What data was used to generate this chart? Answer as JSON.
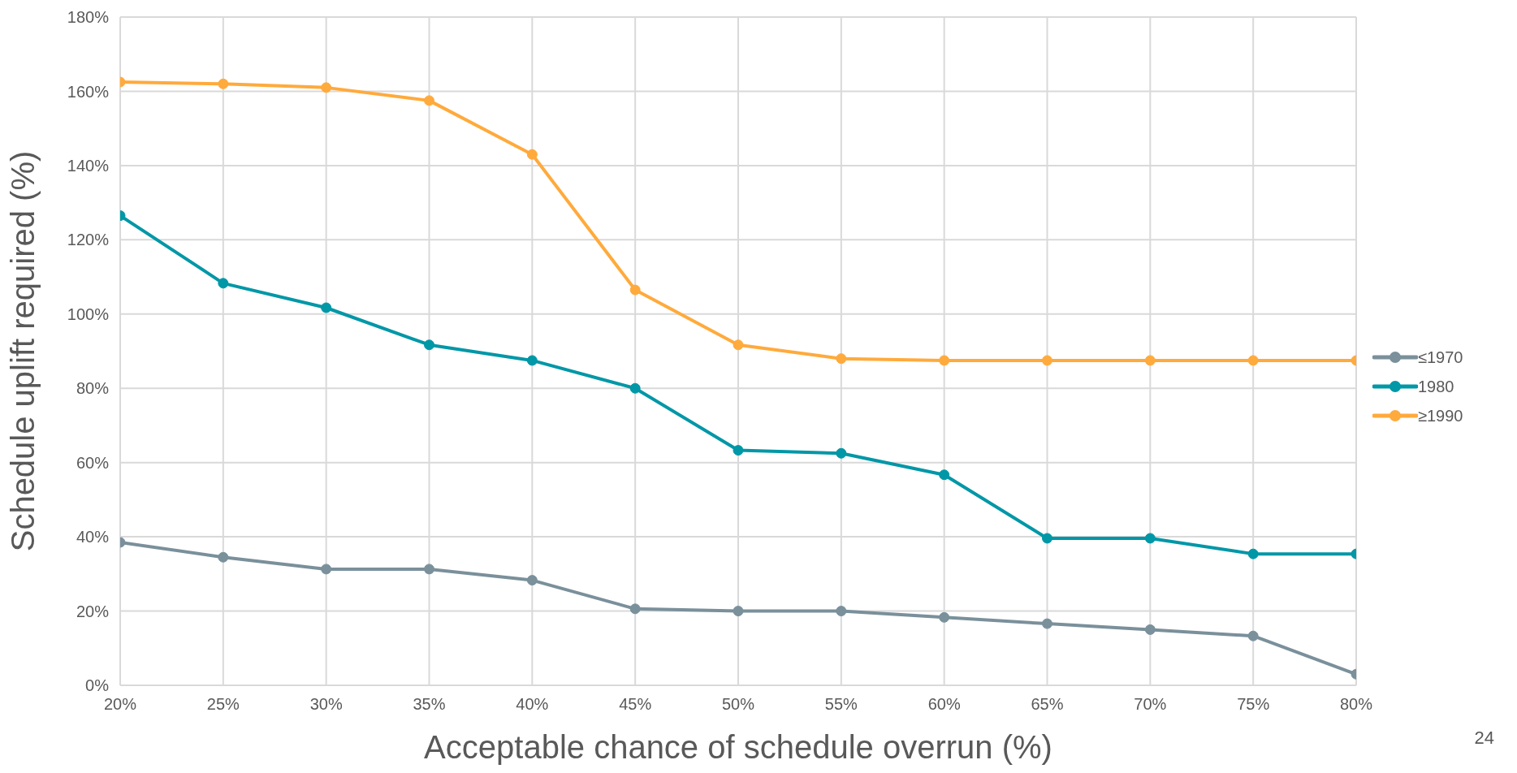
{
  "chart_data": {
    "type": "line",
    "xlabel": "Acceptable chance of schedule overrun (%)",
    "ylabel": "Schedule uplift required (%)",
    "x": [
      20,
      25,
      30,
      35,
      40,
      45,
      50,
      55,
      60,
      65,
      70,
      75,
      80
    ],
    "series": [
      {
        "name": "≤1970",
        "color": "#7a909b",
        "values": [
          38.5,
          34.5,
          31.3,
          31.3,
          28.3,
          20.6,
          20,
          20,
          18.3,
          16.6,
          15,
          13.3,
          3
        ]
      },
      {
        "name": "1980",
        "color": "#0097a7",
        "values": [
          126.5,
          108.3,
          101.7,
          91.7,
          87.5,
          80,
          63.3,
          62.5,
          56.7,
          39.6,
          39.6,
          35.4,
          35.4
        ]
      },
      {
        "name": "≥1990",
        "color": "#ffaa3c",
        "values": [
          162.5,
          162,
          161,
          157.5,
          143,
          106.5,
          91.7,
          88,
          87.5,
          87.5,
          87.5,
          87.5,
          87.5
        ]
      }
    ],
    "xlim": [
      20,
      80
    ],
    "xticks": [
      {
        "value": 20,
        "label": "20%"
      },
      {
        "value": 25,
        "label": "25%"
      },
      {
        "value": 30,
        "label": "30%"
      },
      {
        "value": 35,
        "label": "35%"
      },
      {
        "value": 40,
        "label": "40%"
      },
      {
        "value": 45,
        "label": "45%"
      },
      {
        "value": 50,
        "label": "50%"
      },
      {
        "value": 55,
        "label": "55%"
      },
      {
        "value": 60,
        "label": "60%"
      },
      {
        "value": 65,
        "label": "65%"
      },
      {
        "value": 70,
        "label": "70%"
      },
      {
        "value": 75,
        "label": "75%"
      },
      {
        "value": 80,
        "label": "80%"
      }
    ],
    "ylim": [
      0,
      180
    ],
    "yticks": [
      {
        "value": 0,
        "label": "0%"
      },
      {
        "value": 20,
        "label": "20%"
      },
      {
        "value": 40,
        "label": "40%"
      },
      {
        "value": 60,
        "label": "60%"
      },
      {
        "value": 80,
        "label": "80%"
      },
      {
        "value": 100,
        "label": "100%"
      },
      {
        "value": 120,
        "label": "120%"
      },
      {
        "value": 140,
        "label": "140%"
      },
      {
        "value": 160,
        "label": "160%"
      },
      {
        "value": 180,
        "label": "180%"
      }
    ],
    "grid": true,
    "legend": "right",
    "marker": "circle",
    "line_style": "solid",
    "annotations": [
      "24"
    ]
  }
}
